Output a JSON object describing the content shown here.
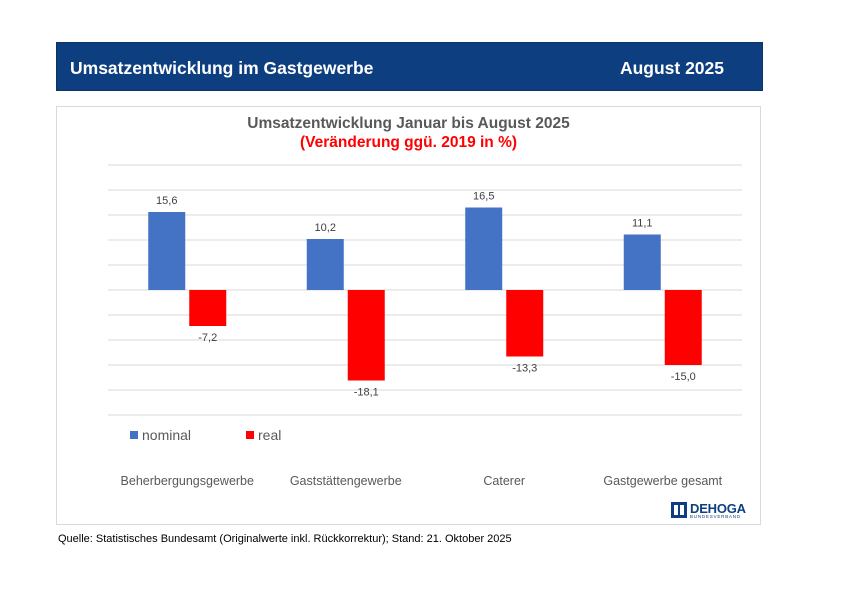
{
  "header": {
    "title": "Umsatzentwicklung im Gastgewerbe",
    "date": "August 2025"
  },
  "chart_data": {
    "type": "bar",
    "title": "Umsatzentwicklung Januar bis August 2025",
    "subtitle": "(Veränderung ggü. 2019 in %)",
    "categories": [
      "Beherbergungsgewerbe",
      "Gaststättengewerbe",
      "Caterer",
      "Gastgewerbe gesamt"
    ],
    "series": [
      {
        "name": "nominal",
        "color": "#4472c4",
        "values": [
          15.6,
          10.2,
          16.5,
          11.1
        ],
        "labels": [
          "15,6",
          "10,2",
          "16,5",
          "11,1"
        ]
      },
      {
        "name": "real",
        "color": "#ff0000",
        "values": [
          -7.2,
          -18.1,
          -13.3,
          -15.0
        ],
        "labels": [
          "-7,2",
          "-18,1",
          "-13,3",
          "-15,0"
        ]
      }
    ],
    "ylim": [
      -25,
      25
    ],
    "xlabel": "",
    "ylabel": "",
    "grid": true,
    "legend": "bottom-left"
  },
  "source_note": "Quelle: Statistisches Bundesamt (Originalwerte inkl. Rückkorrektur); Stand: 21. Oktober 2025",
  "logo": {
    "name": "DEHOGA",
    "sub": "BUNDESVERBAND"
  }
}
